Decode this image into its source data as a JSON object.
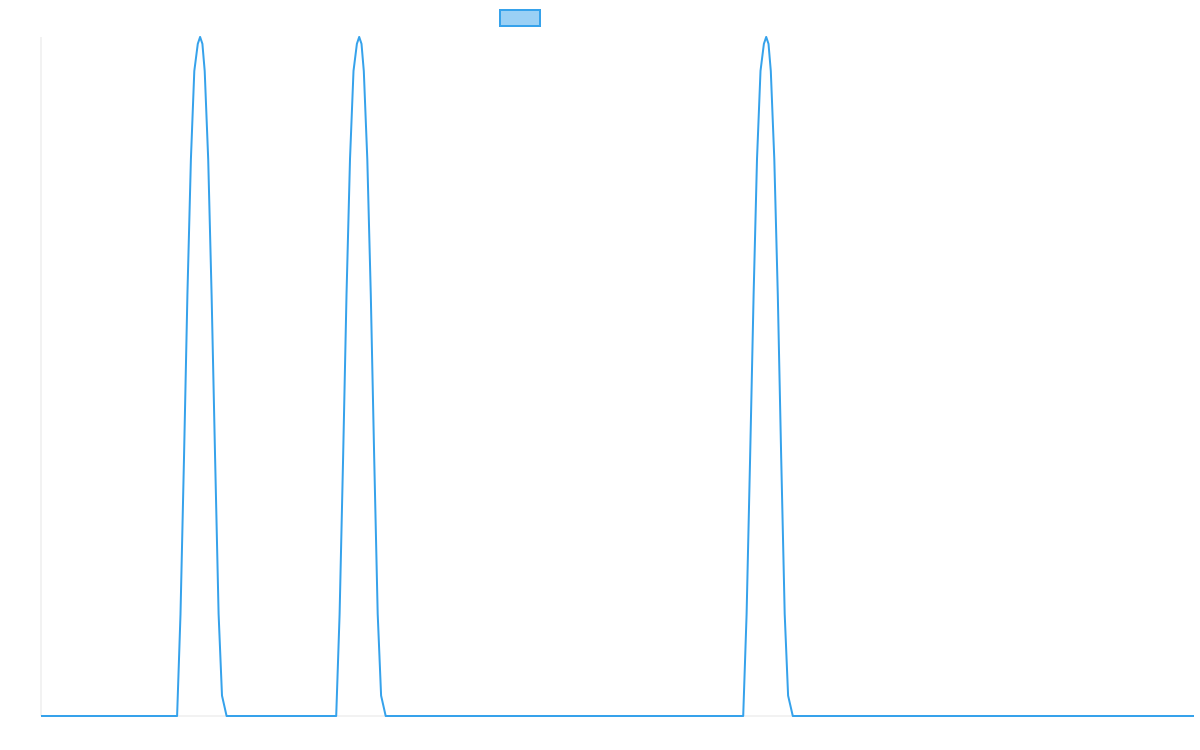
{
  "chart_data": {
    "type": "line",
    "title": "",
    "xlabel": "",
    "ylabel": "",
    "legend": {
      "placement": "top-center",
      "entries": [
        {
          "name": "",
          "color": "#36A2EB",
          "fill": "#9AD0F5"
        }
      ]
    },
    "grid": false,
    "xlim": [
      0,
      1.0
    ],
    "ylim": [
      0,
      1.0
    ],
    "series": [
      {
        "name": "",
        "color": "#36A2EB",
        "x": [
          0,
          0.118,
          0.121,
          0.124,
          0.127,
          0.13,
          0.133,
          0.136,
          0.138,
          0.14,
          0.142,
          0.145,
          0.148,
          0.151,
          0.154,
          0.157,
          0.161,
          0.256,
          0.259,
          0.262,
          0.265,
          0.268,
          0.271,
          0.274,
          0.276,
          0.278,
          0.28,
          0.283,
          0.286,
          0.289,
          0.292,
          0.295,
          0.299,
          0.609,
          0.612,
          0.615,
          0.618,
          0.621,
          0.624,
          0.627,
          0.629,
          0.631,
          0.633,
          0.636,
          0.639,
          0.642,
          0.645,
          0.648,
          0.652,
          1.0
        ],
        "y": [
          0,
          0,
          0.15,
          0.38,
          0.62,
          0.82,
          0.95,
          0.99,
          1.0,
          0.99,
          0.95,
          0.82,
          0.62,
          0.38,
          0.15,
          0.03,
          0,
          0,
          0.15,
          0.38,
          0.62,
          0.82,
          0.95,
          0.99,
          1.0,
          0.99,
          0.95,
          0.82,
          0.62,
          0.38,
          0.15,
          0.03,
          0,
          0,
          0.15,
          0.38,
          0.62,
          0.82,
          0.95,
          0.99,
          1.0,
          0.99,
          0.95,
          0.82,
          0.62,
          0.38,
          0.15,
          0.03,
          0,
          0
        ]
      }
    ]
  }
}
